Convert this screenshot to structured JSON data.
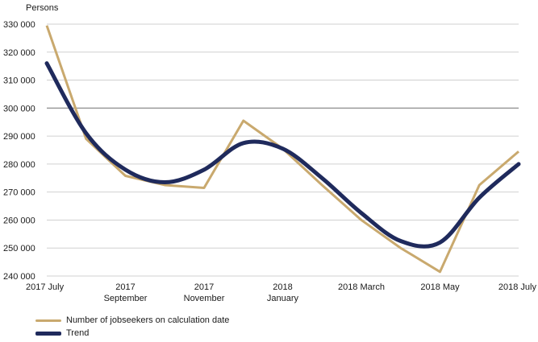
{
  "chart_data": {
    "type": "line",
    "ylabel": "Persons",
    "ylim": [
      240000,
      330000
    ],
    "yticks": [
      240000,
      250000,
      260000,
      270000,
      280000,
      290000,
      300000,
      310000,
      320000,
      330000
    ],
    "ytick_labels": [
      "240 000",
      "250 000",
      "260 000",
      "270 000",
      "280 000",
      "290 000",
      "300 000",
      "310 000",
      "320 000",
      "330 000"
    ],
    "reference_line": 300000,
    "grid": true,
    "legend_position": "bottom-left",
    "x": [
      "2017-07",
      "2017-08",
      "2017-09",
      "2017-10",
      "2017-11",
      "2017-12",
      "2018-01",
      "2018-02",
      "2018-03",
      "2018-04",
      "2018-05",
      "2018-06",
      "2018-07"
    ],
    "xtick_labels": [
      {
        "at": "2017-07",
        "lines": [
          "2017 July"
        ]
      },
      {
        "at": "2017-09",
        "lines": [
          "2017",
          "September"
        ]
      },
      {
        "at": "2017-11",
        "lines": [
          "2017",
          "November"
        ]
      },
      {
        "at": "2018-01",
        "lines": [
          "2018",
          "January"
        ]
      },
      {
        "at": "2018-03",
        "lines": [
          "2018 March"
        ]
      },
      {
        "at": "2018-05",
        "lines": [
          "2018 May"
        ]
      },
      {
        "at": "2018-07",
        "lines": [
          "2018 July"
        ]
      }
    ],
    "series": [
      {
        "name": "Number of jobseekers on calculation date",
        "color": "#c9a96e",
        "values": [
          329500,
          289000,
          275800,
          272500,
          271500,
          295500,
          285500,
          272500,
          260000,
          250000,
          241500,
          272500,
          284500
        ]
      },
      {
        "name": "Trend",
        "color": "#1f2a5c",
        "values": [
          316000,
          291000,
          278000,
          273500,
          278000,
          287500,
          285500,
          275000,
          262500,
          252500,
          252000,
          268000,
          280000
        ]
      }
    ]
  }
}
